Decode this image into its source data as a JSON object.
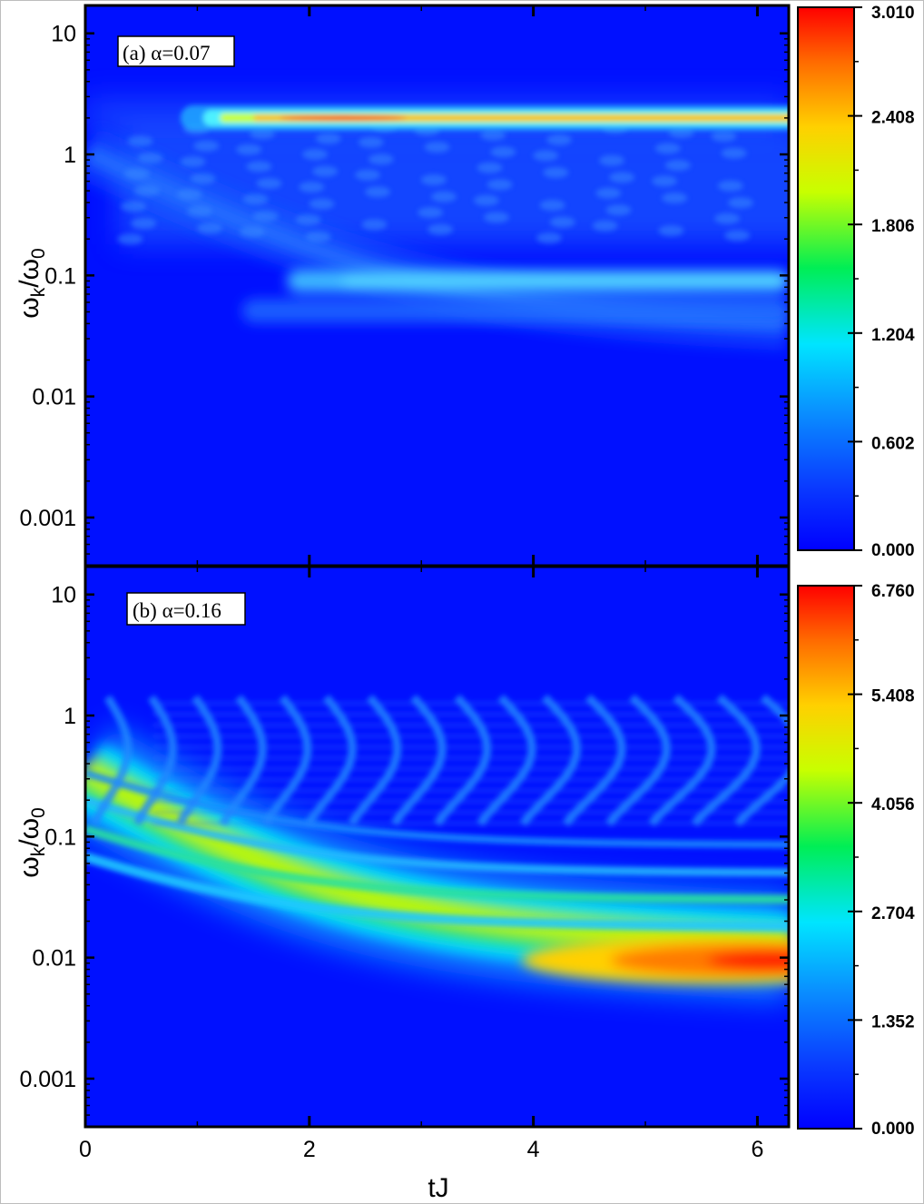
{
  "chart_data": [
    {
      "type": "heatmap",
      "panel_label": "(a) α=0.07",
      "xlabel": "tJ",
      "ylabel_main": "ω",
      "ylabel_sub1": "k",
      "ylabel_mid": "/ω",
      "ylabel_sub2": "0",
      "xlim": [
        0,
        6.28
      ],
      "ylim": [
        0.0004,
        17
      ],
      "yscale": "log",
      "x_ticks": [
        "0",
        "2",
        "4",
        "6"
      ],
      "y_ticks": [
        "0.001",
        "0.01",
        "0.1",
        "1",
        "10"
      ],
      "colorbar_ticks": [
        "0.000",
        "0.602",
        "1.204",
        "1.806",
        "2.408",
        "3.010"
      ],
      "colorbar_range": [
        0,
        3.01
      ],
      "features": [
        {
          "kind": "horizontal band",
          "y": 2.0,
          "x_from": 1.0,
          "x_to": 6.28,
          "peak_value": 3.01,
          "peak_at_x": 2.3
        },
        {
          "kind": "horizontal band",
          "y": 0.09,
          "x_from": 1.8,
          "x_to": 6.28,
          "peak_value": 0.85
        },
        {
          "kind": "decaying branch",
          "y_at_x0": 1.0,
          "y_at_xmax": 0.03,
          "peak_value": 0.45
        },
        {
          "kind": "oscillating background",
          "y_range": [
            0.15,
            2.0
          ],
          "peak_value": 0.35
        }
      ]
    },
    {
      "type": "heatmap",
      "panel_label": "(b) α=0.16",
      "xlabel": "tJ",
      "ylabel_main": "ω",
      "ylabel_sub1": "k",
      "ylabel_mid": "/ω",
      "ylabel_sub2": "0",
      "xlim": [
        0,
        6.28
      ],
      "ylim": [
        0.0004,
        17
      ],
      "yscale": "log",
      "x_ticks": [
        "0",
        "2",
        "4",
        "6"
      ],
      "y_ticks": [
        "0.001",
        "0.01",
        "0.1",
        "1",
        "10"
      ],
      "colorbar_ticks": [
        "0.000",
        "1.352",
        "2.704",
        "4.056",
        "5.408",
        "6.760"
      ],
      "colorbar_range": [
        0,
        6.76
      ],
      "features": [
        {
          "kind": "main decaying band",
          "y_at_x0": 0.3,
          "y_at_xmax": 0.009,
          "peak_value": 6.76,
          "peak_at_x": 6.2
        },
        {
          "kind": "fringe bands",
          "count": 4,
          "peak_value": 2.7
        },
        {
          "kind": "oscillating interference pattern",
          "y_range": [
            0.1,
            1.5
          ],
          "peak_value": 1.5
        }
      ]
    }
  ]
}
